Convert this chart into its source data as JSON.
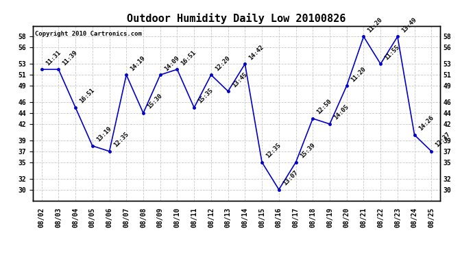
{
  "title": "Outdoor Humidity Daily Low 20100826",
  "copyright": "Copyright 2010 Cartronics.com",
  "dates": [
    "08/02",
    "08/03",
    "08/04",
    "08/05",
    "08/06",
    "08/07",
    "08/08",
    "08/09",
    "08/10",
    "08/11",
    "08/12",
    "08/13",
    "08/14",
    "08/15",
    "08/16",
    "08/17",
    "08/18",
    "08/19",
    "08/20",
    "08/21",
    "08/22",
    "08/23",
    "08/24",
    "08/25"
  ],
  "values": [
    52,
    52,
    45,
    38,
    37,
    51,
    44,
    51,
    52,
    45,
    51,
    48,
    53,
    35,
    30,
    35,
    43,
    42,
    49,
    58,
    53,
    58,
    40,
    37
  ],
  "times": [
    "11:31",
    "11:39",
    "16:51",
    "13:19",
    "12:35",
    "14:19",
    "15:30",
    "14:09",
    "16:51",
    "15:35",
    "12:20",
    "13:45",
    "14:42",
    "12:35",
    "13:07",
    "15:39",
    "12:50",
    "14:05",
    "11:20",
    "11:20",
    "11:55",
    "13:49",
    "14:26",
    "12:37"
  ],
  "line_color": "#0000cc",
  "marker_color": "#0000cc",
  "bg_color": "#ffffff",
  "grid_color": "#c8c8c8",
  "ylim": [
    28,
    60
  ],
  "yticks": [
    30,
    32,
    35,
    37,
    39,
    42,
    44,
    46,
    49,
    51,
    53,
    56,
    58
  ],
  "title_fontsize": 11,
  "label_fontsize": 7,
  "time_fontsize": 6.5,
  "copyright_fontsize": 6.5
}
